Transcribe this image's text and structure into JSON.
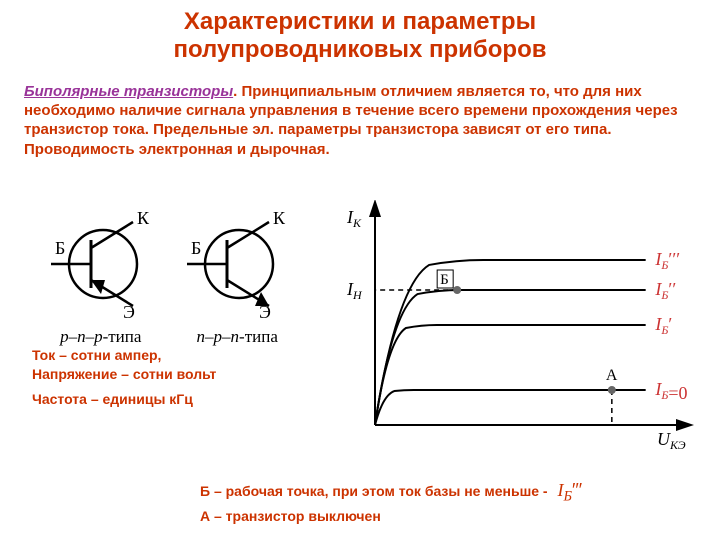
{
  "title": {
    "line1": "Характеристики и параметры",
    "line2": "полупроводниковых приборов",
    "color": "#cc3300",
    "fontsize": 24
  },
  "paragraph": {
    "link_text": "Биполярные транзисторы",
    "link_color": "#993399",
    "rest_text": ". Принципиальным отличием является то, что для них необходимо наличие сигнала управления в течение всего времени прохождения через транзистор тока. Предельные эл. параметры транзистора зависят от его типа. Проводимость электронная и дырочная.",
    "color": "#cc3300",
    "fontsize": 15
  },
  "bjt_symbols": {
    "pin_B": "Б",
    "pin_K": "К",
    "pin_E": "Э",
    "pnp_caption_prefix": "p–n–p",
    "npn_caption_prefix": "n–p–n",
    "caption_suffix": "-типа",
    "stroke": "#000000",
    "font": "Times New Roman"
  },
  "left_notes": {
    "line1": "Ток – сотни ампер,",
    "line2": "Напряжение – сотни вольт",
    "line3": "Частота – единицы кГц",
    "color": "#cc3300",
    "fontsize": 14
  },
  "graph": {
    "axis_color": "#000000",
    "curve_color": "#000000",
    "dash_color": "#000000",
    "point_fill": "#666666",
    "x_label": "U",
    "x_label_sub": "КЭ",
    "y_label": "I",
    "y_label_sub": "К",
    "y_tick_label": "I",
    "y_tick_sub": "Н",
    "point_B_label": "Б",
    "point_A_label": "А",
    "curves": [
      {
        "plateau_y": 35,
        "label_I": "I",
        "label_sub": "Б",
        "label_suffix": "=0",
        "primes": ""
      },
      {
        "plateau_y": 100,
        "label_I": "I",
        "label_sub": "Б",
        "label_suffix": "",
        "primes": "′"
      },
      {
        "plateau_y": 135,
        "label_I": "I",
        "label_sub": "Б",
        "label_suffix": "",
        "primes": "′′"
      },
      {
        "plateau_y": 165,
        "label_I": "I",
        "label_sub": "Б",
        "label_suffix": "",
        "primes": "′′′"
      }
    ],
    "point_B": {
      "x": 85,
      "curve_idx": 2
    },
    "point_A": {
      "x": 245,
      "curve_idx": 0
    },
    "xlim": [
      0,
      300
    ],
    "ylim": [
      0,
      200
    ],
    "label_font": "Times New Roman",
    "label_fontsize": 18
  },
  "bottom_notes": {
    "color": "#cc3300",
    "fontsize": 14,
    "line1_prefix": "Б – рабочая точка, при этом ток базы не меньше -",
    "line1_ib_I": "I",
    "line1_ib_sub": "Б",
    "line1_ib_primes": "′′′",
    "line2": "А – транзистор выключен",
    "ib_color": "#cc3300"
  }
}
